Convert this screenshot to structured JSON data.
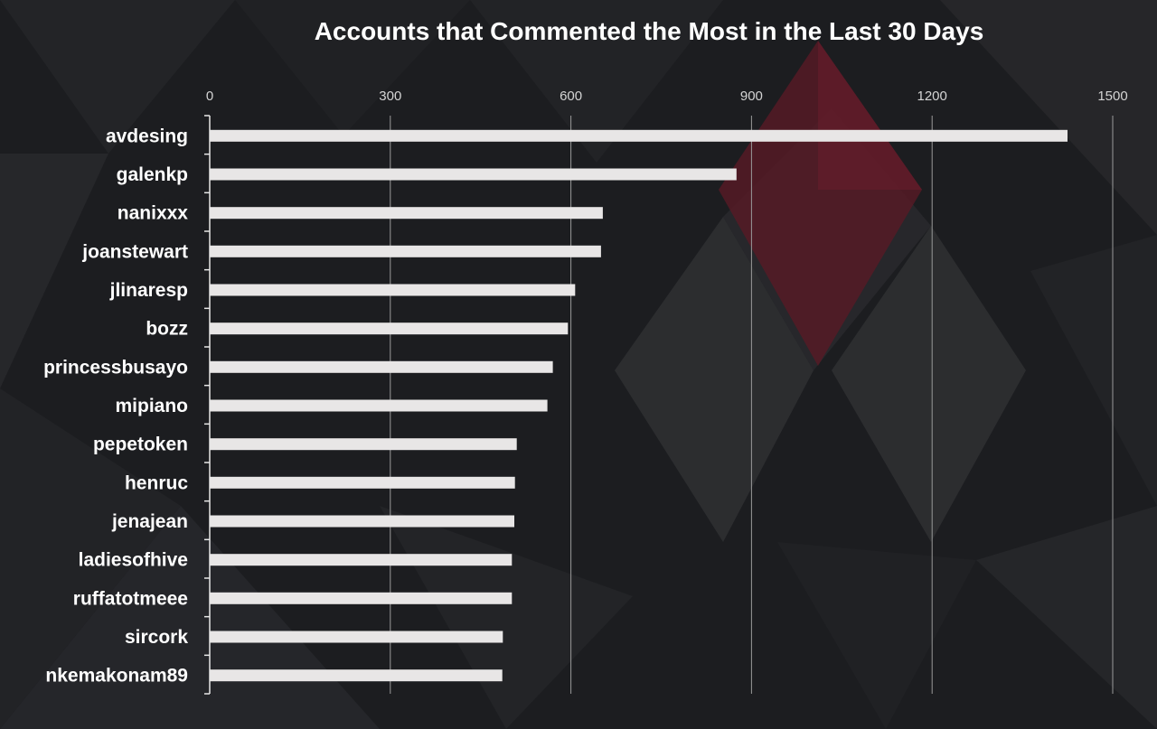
{
  "chart_data": {
    "type": "bar",
    "orientation": "horizontal",
    "title": "Accounts that Commented the Most in the Last 30 Days",
    "xlabel": "",
    "ylabel": "",
    "xlim": [
      0,
      1500
    ],
    "ticks": [
      "0",
      "300",
      "600",
      "900",
      "1200",
      "1500"
    ],
    "tick_values": [
      0,
      300,
      600,
      900,
      1200,
      1500
    ],
    "tick_position": "top",
    "grid": true,
    "categories": [
      "avdesing",
      "galenkp",
      "nanixxx",
      "joanstewart",
      "jlinaresp",
      "bozz",
      "princessbusayo",
      "mipiano",
      "pepetoken",
      "henruc",
      "jenajean",
      "ladiesofhive",
      "ruffatotmeee",
      "sircork",
      "nkemakonam89"
    ],
    "values": [
      1425,
      875,
      653,
      650,
      607,
      595,
      570,
      561,
      510,
      507,
      506,
      502,
      502,
      487,
      486
    ],
    "colors": {
      "bar": "#e8e6e6",
      "background": "#1c1d20",
      "grid": "#9a9a9a",
      "text": "#ffffff",
      "accent": "#8b2030"
    }
  }
}
